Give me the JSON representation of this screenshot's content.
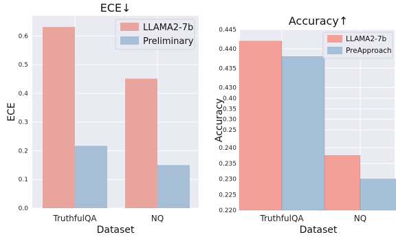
{
  "chart_data": [
    {
      "type": "bar",
      "title": "ECE↓",
      "xlabel": "Dataset",
      "ylabel": "ECE",
      "categories": [
        "TruthfulQA",
        "NQ"
      ],
      "series": [
        {
          "name": "LLAMA2-7b",
          "values": [
            0.631,
            0.451
          ]
        },
        {
          "name": "Preliminary",
          "values": [
            0.217,
            0.15
          ]
        }
      ],
      "ylim": [
        0,
        0.67
      ],
      "yticks": [
        "0.0",
        "0.1",
        "0.2",
        "0.3",
        "0.4",
        "0.5",
        "0.6"
      ],
      "legend": "top-right",
      "grid": true,
      "colors": {
        "LLAMA2-7b": "#e8a49d",
        "Preliminary": "#a6bfd6",
        "background": "#eaeaf2"
      }
    },
    {
      "type": "bar",
      "title": "Accuracy↑",
      "xlabel": "Dataset",
      "ylabel": "Accuracy",
      "categories": [
        "TruthfulQA",
        "NQ"
      ],
      "series": [
        {
          "name": "LLAMA2-7b",
          "values": [
            0.442,
            0.2375
          ]
        },
        {
          "name": "PreApproach",
          "values": [
            0.438,
            0.23
          ]
        }
      ],
      "broken_axis": true,
      "upper_ylim": [
        0.429,
        0.445
      ],
      "upper_yticks": [
        "0.430",
        "0.435",
        "0.440",
        "0.445"
      ],
      "middle_yticks": [
        "0.40",
        "0.35",
        "0.30",
        "0.25",
        "0.240"
      ],
      "lower_ylim": [
        0.22,
        0.24
      ],
      "lower_yticks": [
        "0.220",
        "0.225",
        "0.230",
        "0.235"
      ],
      "legend": "top-right",
      "grid": true,
      "colors": {
        "LLAMA2-7b": "#f4a099",
        "PreApproach": "#a5c1d9",
        "background": "#eaeaf2"
      }
    }
  ]
}
